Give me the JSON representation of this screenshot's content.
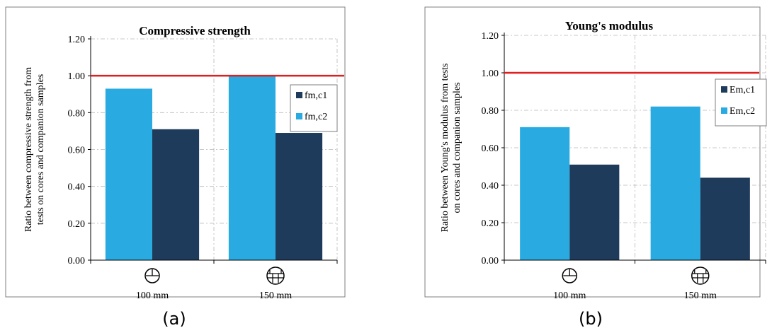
{
  "chart_data": [
    {
      "type": "bar",
      "title": "Compressive strength",
      "xlabel": "",
      "ylabel": "Ratio between compressive strength from tests on cores and companion samples",
      "ylabel_lines": [
        "Ratio between compressive strength from",
        "tests on cores and companion samples"
      ],
      "categories": [
        "100 mm",
        "150 mm"
      ],
      "series": [
        {
          "name": "fm,c1",
          "values": [
            0.71,
            0.69
          ],
          "color": "#1f3b5c"
        },
        {
          "name": "fm,c2",
          "values": [
            0.93,
            1.0
          ],
          "color": "#29abe2"
        }
      ],
      "reference_line": {
        "value": 1.0,
        "color": "#e02020"
      },
      "ylim": [
        0,
        1.2
      ],
      "yticks": [
        "0.00",
        "0.20",
        "0.40",
        "0.60",
        "0.80",
        "1.00",
        "1.20"
      ],
      "grid": true,
      "legend_position": "right",
      "panel_label": "(a)"
    },
    {
      "type": "bar",
      "title": "Young's modulus",
      "xlabel": "",
      "ylabel": "Ratio between Young's modulus from tests on cores and companion samples",
      "ylabel_lines": [
        "Ratio between Young's modulus from tests",
        "on cores and companion samples"
      ],
      "categories": [
        "100 mm",
        "150 mm"
      ],
      "series": [
        {
          "name": "Em,c1",
          "values": [
            0.51,
            0.44
          ],
          "color": "#1f3b5c"
        },
        {
          "name": "Em,c2",
          "values": [
            0.71,
            0.82
          ],
          "color": "#29abe2"
        }
      ],
      "reference_line": {
        "value": 1.0,
        "color": "#e02020"
      },
      "ylim": [
        0,
        1.2
      ],
      "yticks": [
        "0.00",
        "0.20",
        "0.40",
        "0.60",
        "0.80",
        "1.00",
        "1.20"
      ],
      "grid": true,
      "legend_position": "right",
      "panel_label": "(b)"
    }
  ]
}
